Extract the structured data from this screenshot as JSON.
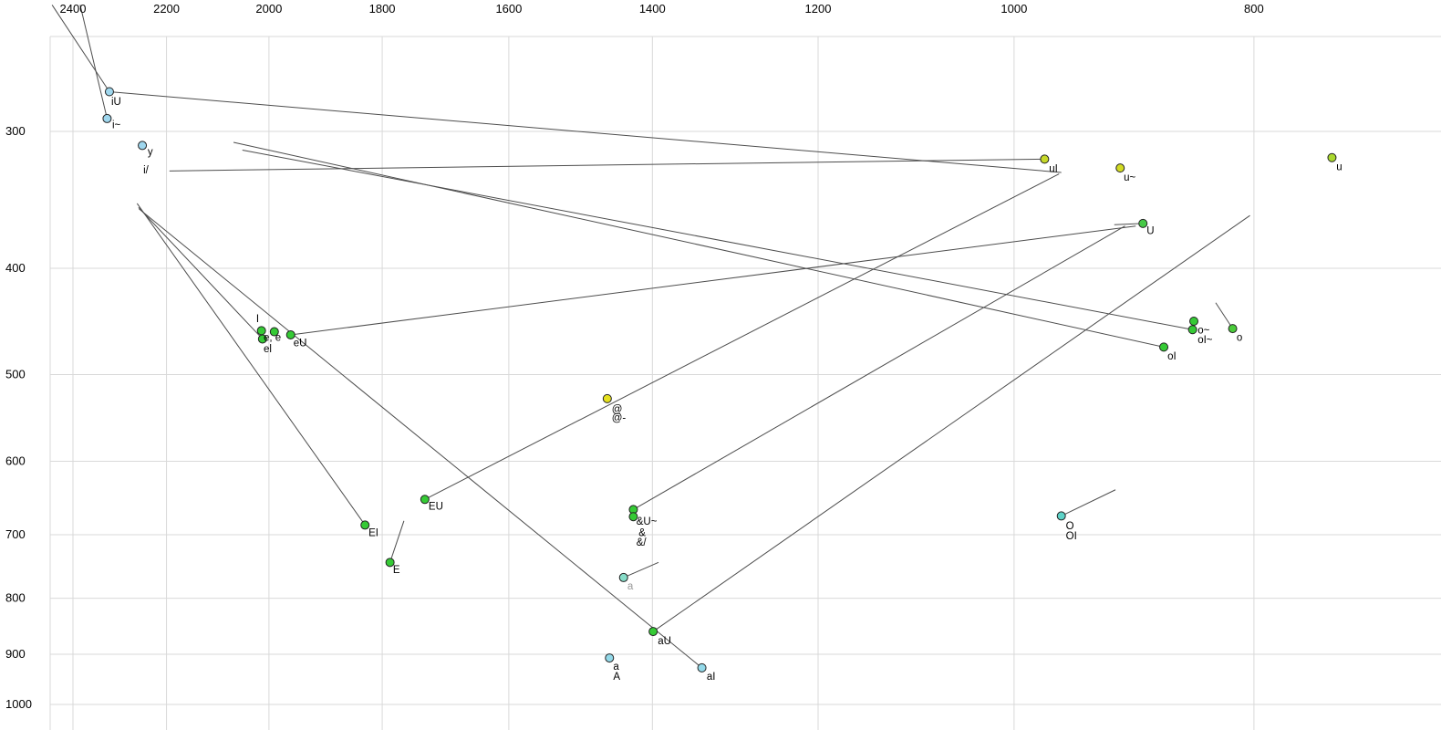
{
  "chart_data": {
    "type": "scatter",
    "title": "",
    "description": "Vowel formant plot: F2 (Hz, log scale, decreasing left-to-right) on top axis, F1 (Hz, log scale, increasing downward) on left axis, with diphthong trajectory lines",
    "x_axis": {
      "ticks": [
        2400,
        2200,
        2000,
        1800,
        1600,
        1400,
        1200,
        1000,
        800
      ],
      "scale": "log",
      "reversed": true
    },
    "y_axis": {
      "ticks": [
        300,
        400,
        500,
        600,
        700,
        800,
        900,
        1000
      ],
      "scale": "log",
      "reversed": false
    },
    "grid": true,
    "colors": {
      "grid": "#d9d9d9",
      "border": "#d9d9d9",
      "segment": "#4d4d4d",
      "marker_stroke": "#222222",
      "axis_text": "#000000",
      "label_text": "#000000",
      "muted_label": "#9a9a9a",
      "background": "#ffffff"
    },
    "points": [
      {
        "name": "iU",
        "f2": 2320,
        "f1": 276,
        "color": "#9fd7ee"
      },
      {
        "name": "i~",
        "f2": 2325,
        "f1": 292,
        "color": "#9fd7ee"
      },
      {
        "name": "y",
        "f2": 2250,
        "f1": 309,
        "color": "#9fd7ee"
      },
      {
        "name": "uI",
        "f2": 972,
        "f1": 318,
        "color": "#c6d829"
      },
      {
        "name": "u~",
        "f2": 906,
        "f1": 324,
        "color": "#d2db22"
      },
      {
        "name": "u",
        "f2": 744,
        "f1": 317,
        "color": "#aad82e"
      },
      {
        "name": "U",
        "f2": 887,
        "f1": 364,
        "color": "#47c947"
      },
      {
        "name": "e-1",
        "f2": 2014,
        "f1": 456,
        "color": "#35ca35"
      },
      {
        "name": "e-2",
        "f2": 1990,
        "f1": 457,
        "color": "#35ca35"
      },
      {
        "name": "eU",
        "f2": 1960,
        "f1": 460,
        "color": "#35ca35"
      },
      {
        "name": "el",
        "f2": 2012,
        "f1": 464,
        "color": "#35ca35"
      },
      {
        "name": "EU",
        "f2": 1730,
        "f1": 650,
        "color": "#35ca35"
      },
      {
        "name": "EI",
        "f2": 1829,
        "f1": 686,
        "color": "#35ca35"
      },
      {
        "name": "E",
        "f2": 1787,
        "f1": 742,
        "color": "#35ca35"
      },
      {
        "name": "@",
        "f2": 1460,
        "f1": 526,
        "color": "#e5e01e"
      },
      {
        "name": "&U~",
        "f2": 1425,
        "f1": 664,
        "color": "#35ca35"
      },
      {
        "name": "&",
        "f2": 1425,
        "f1": 674,
        "color": "#35ca35"
      },
      {
        "name": "a-mid",
        "f2": 1438,
        "f1": 766,
        "color": "#86dcc8"
      },
      {
        "name": "aU",
        "f2": 1399,
        "f1": 858,
        "color": "#35ca35"
      },
      {
        "name": "a-A",
        "f2": 1457,
        "f1": 907,
        "color": "#93d9e9"
      },
      {
        "name": "aI",
        "f2": 1337,
        "f1": 926,
        "color": "#93d9e9"
      },
      {
        "name": "O",
        "f2": 957,
        "f1": 673,
        "color": "#5ed3c8"
      },
      {
        "name": "oI",
        "f2": 870,
        "f1": 472,
        "color": "#35ca35"
      },
      {
        "name": "o~",
        "f2": 846,
        "f1": 447,
        "color": "#35ca35"
      },
      {
        "name": "oI~",
        "f2": 847,
        "f1": 455,
        "color": "#35ca35"
      },
      {
        "name": "o",
        "f2": 816,
        "f1": 454,
        "color": "#4acb3a"
      }
    ],
    "point_labels": [
      {
        "text": "iU",
        "f2": 2316,
        "f1": 279
      },
      {
        "text": "i~",
        "f2": 2314,
        "f1": 293
      },
      {
        "text": "y",
        "f2": 2239,
        "f1": 310
      },
      {
        "text": "i/",
        "f2": 2248,
        "f1": 322
      },
      {
        "text": "uI",
        "f2": 968,
        "f1": 321
      },
      {
        "text": "u~",
        "f2": 903,
        "f1": 327
      },
      {
        "text": "u",
        "f2": 741,
        "f1": 320
      },
      {
        "text": "U",
        "f2": 884,
        "f1": 366
      },
      {
        "text": "I",
        "f2": 2024,
        "f1": 440
      },
      {
        "text": "e, e",
        "f2": 2010,
        "f1": 458
      },
      {
        "text": "el",
        "f2": 2010,
        "f1": 469
      },
      {
        "text": "eU",
        "f2": 1955,
        "f1": 463
      },
      {
        "text": "EU",
        "f2": 1724,
        "f1": 653
      },
      {
        "text": "EI",
        "f2": 1823,
        "f1": 690
      },
      {
        "text": "E",
        "f2": 1782,
        "f1": 746
      },
      {
        "text": "@",
        "f2": 1454,
        "f1": 532
      },
      {
        "text": "@-",
        "f2": 1454,
        "f1": 542
      },
      {
        "text": "&U~",
        "f2": 1421,
        "f1": 674
      },
      {
        "text": "&",
        "f2": 1418,
        "f1": 690
      },
      {
        "text": "&/",
        "f2": 1421,
        "f1": 704
      },
      {
        "text": "a",
        "f2": 1433,
        "f1": 772,
        "muted": true
      },
      {
        "text": "aU",
        "f2": 1393,
        "f1": 866
      },
      {
        "text": "a",
        "f2": 1452,
        "f1": 914
      },
      {
        "text": "A",
        "f2": 1452,
        "f1": 933
      },
      {
        "text": "aI",
        "f2": 1331,
        "f1": 933
      },
      {
        "text": "O",
        "f2": 953,
        "f1": 680
      },
      {
        "text": "OI",
        "f2": 953,
        "f1": 695
      },
      {
        "text": "oI",
        "f2": 867,
        "f1": 476
      },
      {
        "text": "o~",
        "f2": 843,
        "f1": 451
      },
      {
        "text": "oI~",
        "f2": 843,
        "f1": 460
      },
      {
        "text": "o",
        "f2": 813,
        "f1": 458
      }
    ],
    "segments": [
      {
        "name": "edge-to-iU",
        "a": [
          2447,
          230
        ],
        "b": [
          2320,
          276
        ]
      },
      {
        "name": "edge-to-i-nasal",
        "a": [
          2384,
          230
        ],
        "b": [
          2325,
          292
        ]
      },
      {
        "name": "iU-trajectory",
        "a": [
          2320,
          276
        ],
        "b": [
          957,
          327
        ]
      },
      {
        "name": "uI-trajectory",
        "a": [
          972,
          318
        ],
        "b": [
          2194,
          326
        ]
      },
      {
        "name": "eU-trajectory",
        "a": [
          1960,
          460
        ],
        "b": [
          893,
          366
        ]
      },
      {
        "name": "el-trajectory",
        "a": [
          2012,
          464
        ],
        "b": [
          2258,
          352
        ]
      },
      {
        "name": "EI-trajectory",
        "a": [
          1829,
          686
        ],
        "b": [
          2261,
          349
        ]
      },
      {
        "name": "E-trajectory",
        "a": [
          1787,
          742
        ],
        "b": [
          1764,
          680
        ]
      },
      {
        "name": "EU-trajectory",
        "a": [
          1730,
          650
        ],
        "b": [
          959,
          328
        ]
      },
      {
        "name": "oI-trajectory",
        "a": [
          870,
          472
        ],
        "b": [
          2067,
          307
        ]
      },
      {
        "name": "oI~-trajectory",
        "a": [
          847,
          455
        ],
        "b": [
          2050,
          312
        ]
      },
      {
        "name": "&U~-trajectory",
        "a": [
          1425,
          664
        ],
        "b": [
          902,
          366
        ]
      },
      {
        "name": "aI-trajectory",
        "a": [
          1337,
          926
        ],
        "b": [
          2257,
          353
        ]
      },
      {
        "name": "aU-trajectory",
        "a": [
          1399,
          858
        ],
        "b": [
          803,
          358
        ]
      },
      {
        "name": "a-trajectory",
        "a": [
          1438,
          766
        ],
        "b": [
          1392,
          742
        ]
      },
      {
        "name": "O-trajectory",
        "a": [
          957,
          673
        ],
        "b": [
          910,
          637
        ]
      },
      {
        "name": "U-trajectory",
        "a": [
          887,
          364
        ],
        "b": [
          911,
          365
        ]
      },
      {
        "name": "o-trajectory",
        "a": [
          816,
          454
        ],
        "b": [
          829,
          430
        ]
      }
    ]
  }
}
